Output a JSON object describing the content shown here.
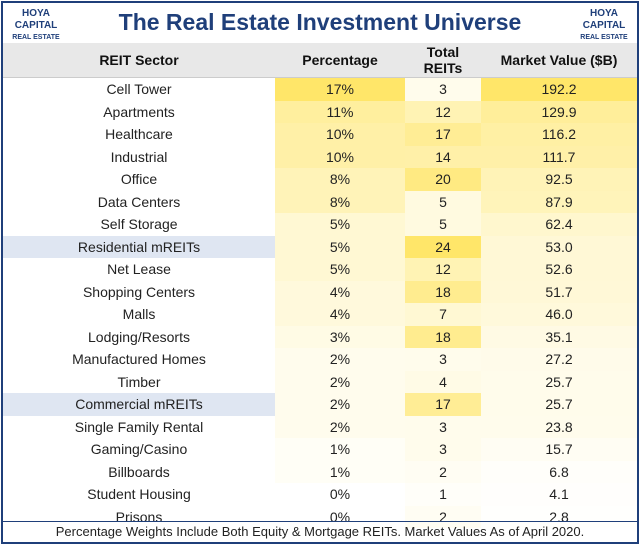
{
  "header": {
    "title": "The Real Estate Investment Universe",
    "logo_line1": "HOYA CAPITAL",
    "logo_line2": "REAL ESTATE"
  },
  "table": {
    "columns": [
      "REIT Sector",
      "Percentage",
      "Total REITs",
      "Market Value ($B)"
    ],
    "rows": [
      [
        "Cell Tower",
        "17%",
        "3",
        "192.2"
      ],
      [
        "Apartments",
        "11%",
        "12",
        "129.9"
      ],
      [
        "Healthcare",
        "10%",
        "17",
        "116.2"
      ],
      [
        "Industrial",
        "10%",
        "14",
        "111.7"
      ],
      [
        "Office",
        "8%",
        "20",
        "92.5"
      ],
      [
        "Data Centers",
        "8%",
        "5",
        "87.9"
      ],
      [
        "Self Storage",
        "5%",
        "5",
        "62.4"
      ],
      [
        "Residential mREITs",
        "5%",
        "24",
        "53.0"
      ],
      [
        "Net Lease",
        "5%",
        "12",
        "52.6"
      ],
      [
        "Shopping Centers",
        "4%",
        "18",
        "51.7"
      ],
      [
        "Malls",
        "4%",
        "7",
        "46.0"
      ],
      [
        "Lodging/Resorts",
        "3%",
        "18",
        "35.1"
      ],
      [
        "Manufactured Homes",
        "2%",
        "3",
        "27.2"
      ],
      [
        "Timber",
        "2%",
        "4",
        "25.7"
      ],
      [
        "Commercial mREITs",
        "2%",
        "17",
        "25.7"
      ],
      [
        "Single Family Rental",
        "2%",
        "3",
        "23.8"
      ],
      [
        "Gaming/Casino",
        "1%",
        "3",
        "15.7"
      ],
      [
        "Billboards",
        "1%",
        "2",
        "6.8"
      ],
      [
        "Student Housing",
        "0%",
        "1",
        "4.1"
      ],
      [
        "Prisons",
        "0%",
        "2",
        "2.8"
      ]
    ]
  },
  "footnote": "Percentage Weights Include Both Equity & Mortgage REITs. Market Values As of April 2020."
}
